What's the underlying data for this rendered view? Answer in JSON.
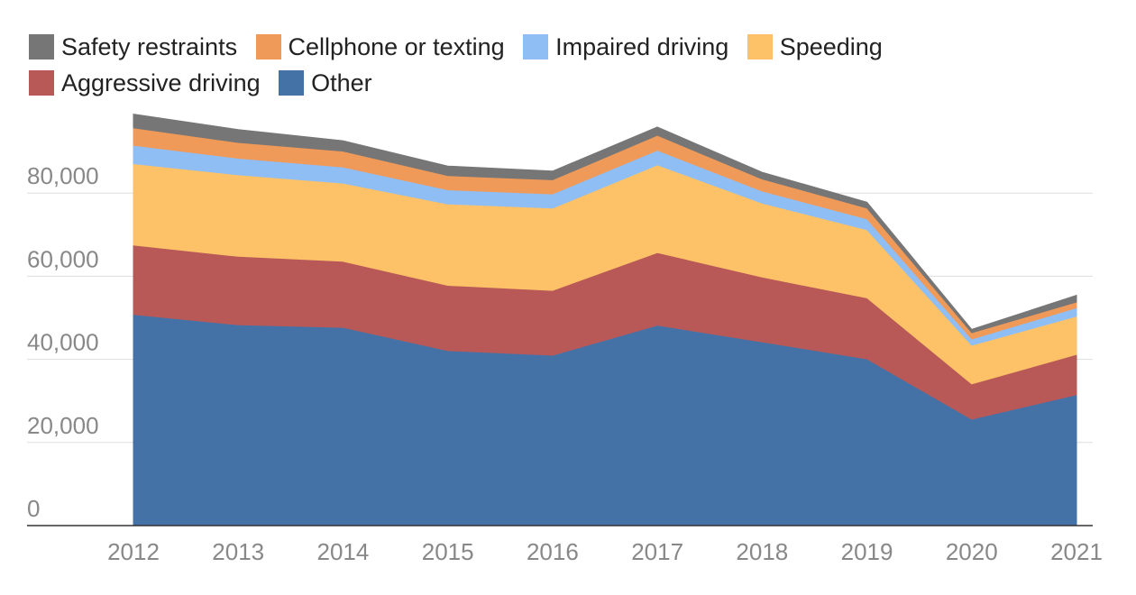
{
  "chart_data": {
    "type": "area",
    "stacked": true,
    "title": "",
    "xlabel": "",
    "ylabel": "",
    "categories": [
      "2012",
      "2013",
      "2014",
      "2015",
      "2016",
      "2017",
      "2018",
      "2019",
      "2020",
      "2021"
    ],
    "ylim": [
      0,
      100000
    ],
    "yticks": [
      {
        "value": 0,
        "label": "0"
      },
      {
        "value": 20000,
        "label": "20,000"
      },
      {
        "value": 40000,
        "label": "40,000"
      },
      {
        "value": 60000,
        "label": "60,000"
      },
      {
        "value": 80000,
        "label": "80,000"
      }
    ],
    "grid": true,
    "legend_placement": "top-left",
    "series": [
      {
        "name": "Other",
        "color": "#4472a7",
        "values": [
          50800,
          48300,
          47700,
          42100,
          41000,
          48200,
          44200,
          40100,
          25600,
          31500
        ]
      },
      {
        "name": "Aggressive driving",
        "color": "#b85958",
        "values": [
          16700,
          16500,
          15900,
          15700,
          15600,
          17500,
          15600,
          14700,
          8500,
          9700
        ]
      },
      {
        "name": "Speeding",
        "color": "#fdc268",
        "values": [
          19600,
          19600,
          18800,
          19600,
          19800,
          21100,
          17800,
          16400,
          9300,
          9200
        ]
      },
      {
        "name": "Impaired driving",
        "color": "#8fbef5",
        "values": [
          4400,
          4000,
          3900,
          3400,
          3400,
          3500,
          2900,
          2600,
          1500,
          2000
        ]
      },
      {
        "name": "Cellphone or texting",
        "color": "#f09a5a",
        "values": [
          4200,
          3800,
          3800,
          3400,
          3400,
          3600,
          2900,
          2600,
          1500,
          1400
        ]
      },
      {
        "name": "Safety restraints",
        "color": "#767676",
        "values": [
          3300,
          3100,
          2500,
          2300,
          2100,
          2000,
          1600,
          1400,
          800,
          1600
        ]
      }
    ],
    "legend_order": [
      "Safety restraints",
      "Cellphone or texting",
      "Impaired driving",
      "Speeding",
      "Aggressive driving",
      "Other"
    ]
  }
}
